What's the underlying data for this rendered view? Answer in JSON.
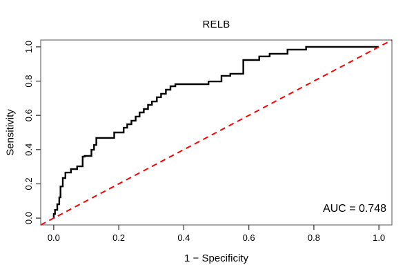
{
  "figure": {
    "kind": "R base graphics ROC plot"
  },
  "chart_data": {
    "type": "line",
    "subtype": "roc_curve",
    "title": "RELB",
    "xlabel": "1 − Specificity",
    "ylabel": "Sensitivity",
    "auc": 0.748,
    "auc_label": "AUC = 0.748",
    "xlim": [
      -0.04,
      1.04
    ],
    "ylim": [
      -0.04,
      1.04
    ],
    "grid": false,
    "legend": "none",
    "x_ticks": [
      0.0,
      0.2,
      0.4,
      0.6,
      0.8,
      1.0
    ],
    "x_tick_labels": [
      "0.0",
      "0.2",
      "0.4",
      "0.6",
      "0.8",
      "1.0"
    ],
    "y_ticks": [
      0.0,
      0.2,
      0.4,
      0.6,
      0.8,
      1.0
    ],
    "y_tick_labels": [
      "0.0",
      "0.2",
      "0.4",
      "0.6",
      "0.8",
      "1.0"
    ],
    "series": [
      {
        "name": "roc_curve",
        "color": "#000000",
        "line_style": "solid",
        "line_width": 2.4,
        "points": [
          [
            0.0,
            0.0
          ],
          [
            0.0,
            0.024
          ],
          [
            0.004,
            0.024
          ],
          [
            0.004,
            0.048
          ],
          [
            0.011,
            0.048
          ],
          [
            0.011,
            0.081
          ],
          [
            0.017,
            0.081
          ],
          [
            0.017,
            0.121
          ],
          [
            0.021,
            0.121
          ],
          [
            0.021,
            0.185
          ],
          [
            0.028,
            0.185
          ],
          [
            0.028,
            0.234
          ],
          [
            0.036,
            0.234
          ],
          [
            0.036,
            0.266
          ],
          [
            0.053,
            0.266
          ],
          [
            0.053,
            0.286
          ],
          [
            0.072,
            0.286
          ],
          [
            0.072,
            0.302
          ],
          [
            0.089,
            0.302
          ],
          [
            0.089,
            0.359
          ],
          [
            0.095,
            0.359
          ],
          [
            0.095,
            0.363
          ],
          [
            0.116,
            0.363
          ],
          [
            0.116,
            0.399
          ],
          [
            0.124,
            0.399
          ],
          [
            0.124,
            0.427
          ],
          [
            0.131,
            0.427
          ],
          [
            0.131,
            0.468
          ],
          [
            0.186,
            0.468
          ],
          [
            0.186,
            0.5
          ],
          [
            0.215,
            0.5
          ],
          [
            0.215,
            0.528
          ],
          [
            0.226,
            0.528
          ],
          [
            0.226,
            0.548
          ],
          [
            0.239,
            0.548
          ],
          [
            0.239,
            0.569
          ],
          [
            0.252,
            0.569
          ],
          [
            0.252,
            0.593
          ],
          [
            0.264,
            0.593
          ],
          [
            0.264,
            0.617
          ],
          [
            0.277,
            0.617
          ],
          [
            0.277,
            0.637
          ],
          [
            0.29,
            0.637
          ],
          [
            0.29,
            0.661
          ],
          [
            0.302,
            0.661
          ],
          [
            0.302,
            0.681
          ],
          [
            0.317,
            0.681
          ],
          [
            0.317,
            0.706
          ],
          [
            0.33,
            0.706
          ],
          [
            0.33,
            0.726
          ],
          [
            0.345,
            0.726
          ],
          [
            0.345,
            0.75
          ],
          [
            0.359,
            0.75
          ],
          [
            0.359,
            0.77
          ],
          [
            0.374,
            0.77
          ],
          [
            0.374,
            0.782
          ],
          [
            0.476,
            0.782
          ],
          [
            0.476,
            0.798
          ],
          [
            0.516,
            0.798
          ],
          [
            0.516,
            0.831
          ],
          [
            0.543,
            0.831
          ],
          [
            0.543,
            0.843
          ],
          [
            0.583,
            0.843
          ],
          [
            0.583,
            0.923
          ],
          [
            0.632,
            0.923
          ],
          [
            0.632,
            0.944
          ],
          [
            0.664,
            0.944
          ],
          [
            0.664,
            0.96
          ],
          [
            0.719,
            0.96
          ],
          [
            0.719,
            0.984
          ],
          [
            0.776,
            0.984
          ],
          [
            0.776,
            1.0
          ],
          [
            1.0,
            1.0
          ]
        ]
      },
      {
        "name": "chance_diagonal",
        "color": "#ff0000",
        "line_style": "dashed",
        "line_width": 2,
        "points": [
          [
            -0.04,
            -0.04
          ],
          [
            1.04,
            1.04
          ]
        ]
      }
    ],
    "colors": {
      "curve": "#000000",
      "diagonal": "#ff0000",
      "box": "#7a7a7a",
      "ticks": "#3a3a3a",
      "text": "#000000",
      "background": "#ffffff"
    }
  }
}
